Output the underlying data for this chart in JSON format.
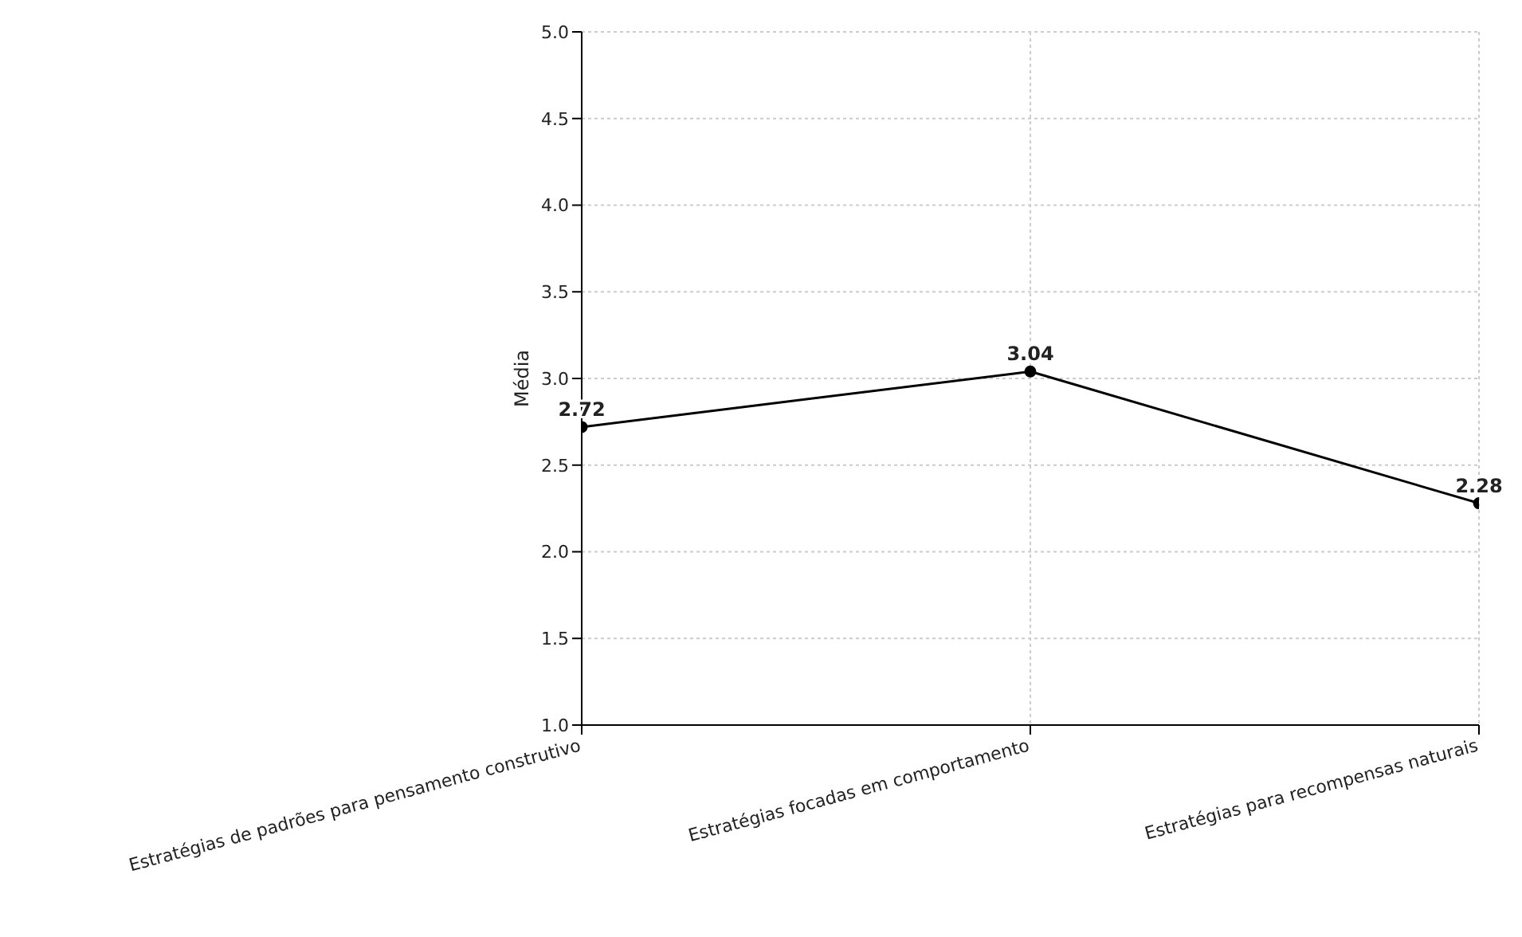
{
  "chart_data": {
    "type": "line",
    "ylabel": "Média",
    "categories": [
      "Estratégias de padrões para pensamento construtivo",
      "Estratégias focadas em comportamento",
      "Estratégias para recompensas naturais"
    ],
    "series": [
      {
        "color": "#000000",
        "values": [
          2.72,
          3.04,
          2.28
        ]
      }
    ],
    "ylim": [
      1.0,
      5.0
    ],
    "yticks": [
      {
        "value": 1,
        "label": "1.0"
      },
      {
        "value": 1.5,
        "label": "1.5"
      },
      {
        "value": 2,
        "label": "2.0"
      },
      {
        "value": 2.5,
        "label": "2.5"
      },
      {
        "value": 3,
        "label": "3.0"
      },
      {
        "value": 3.5,
        "label": "3.5"
      },
      {
        "value": 4,
        "label": "4.0"
      },
      {
        "value": 4.5,
        "label": "4.5"
      },
      {
        "value": 5,
        "label": "5.0"
      }
    ],
    "grid": true,
    "marker": "circle",
    "line_style": "solid",
    "data_labels": true
  }
}
